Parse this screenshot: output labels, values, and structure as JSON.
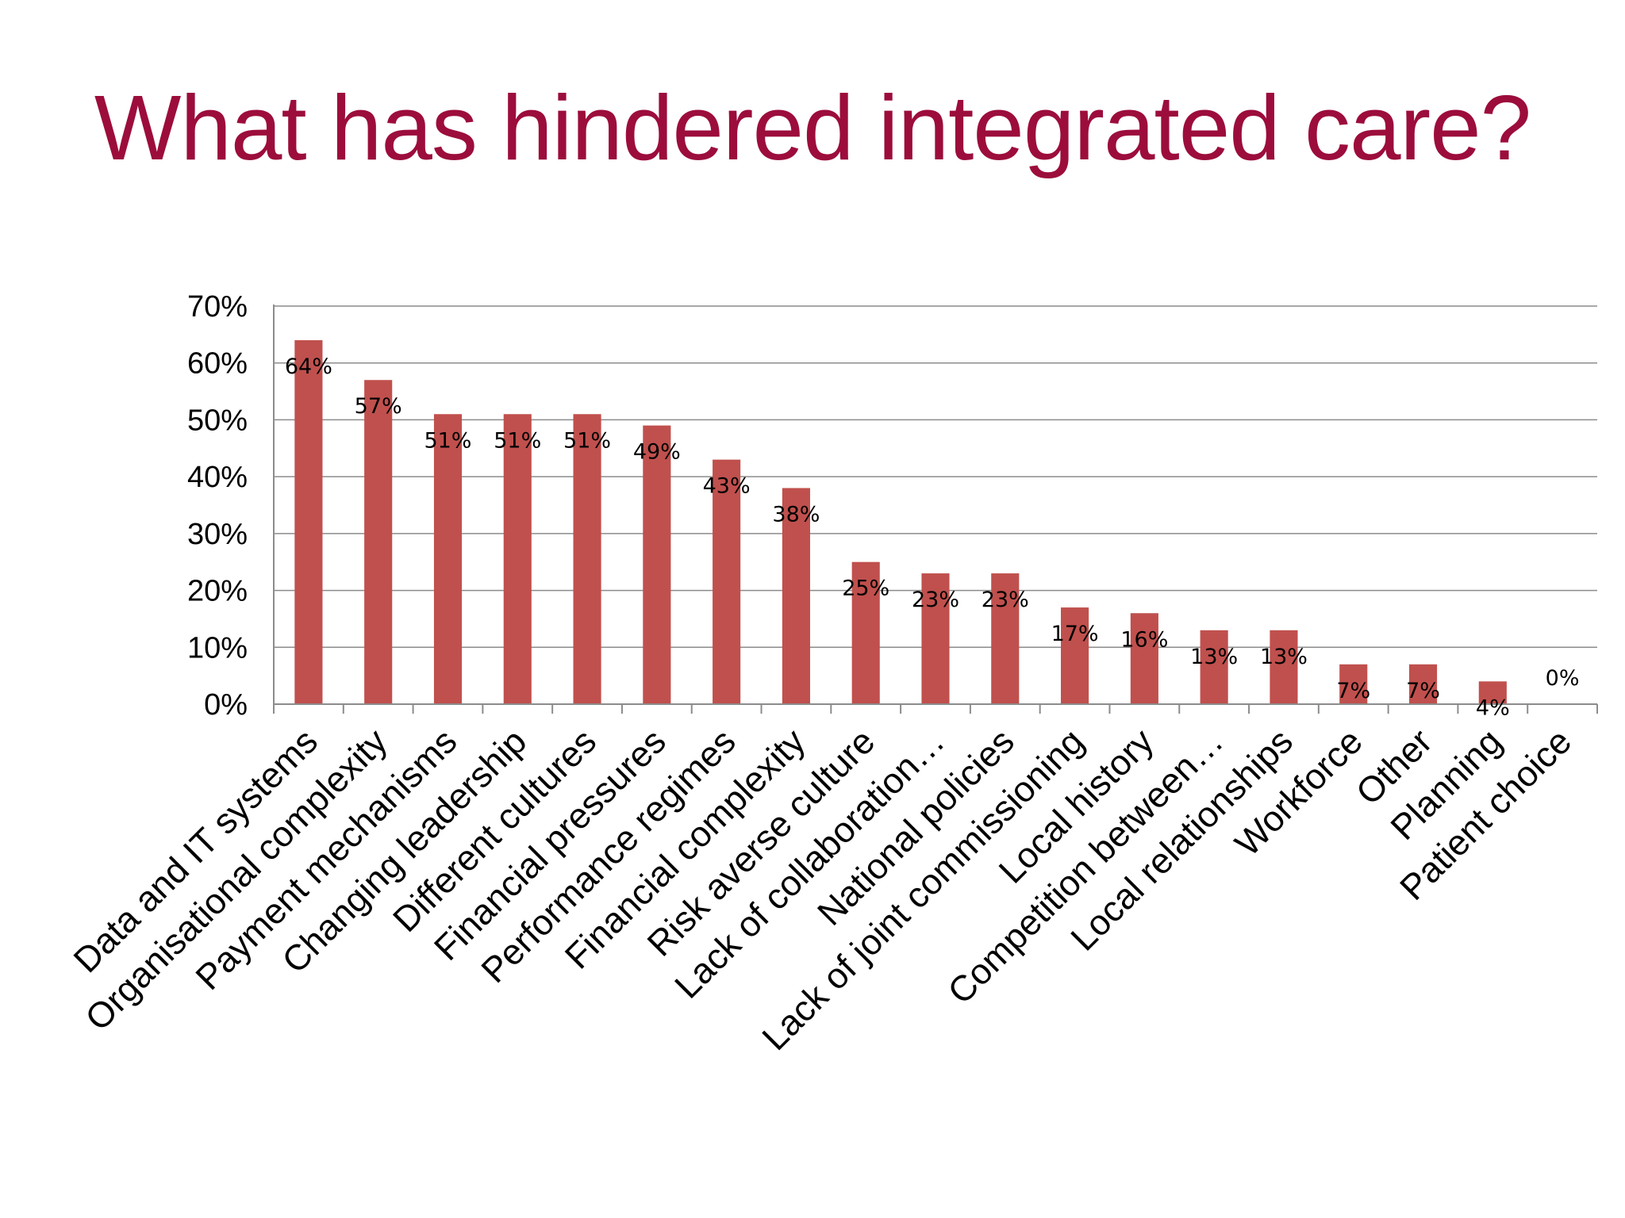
{
  "slide": {
    "title": "What has hindered integrated care?"
  },
  "chart_data": {
    "type": "bar",
    "title": "What has hindered integrated care?",
    "xlabel": "",
    "ylabel": "",
    "ylim": [
      0,
      70
    ],
    "yticks": [
      "0%",
      "10%",
      "20%",
      "30%",
      "40%",
      "50%",
      "60%",
      "70%"
    ],
    "grid": true,
    "legend": "none",
    "bar_color": "#c0504d",
    "categories": [
      "Data and IT systems",
      "Organisational complexity",
      "Payment mechanisms",
      "Changing leadership",
      "Different cultures",
      "Financial pressures",
      "Performance regimes",
      "Financial complexity",
      "Risk averse culture",
      "Lack of collaboration…",
      "National policies",
      "Lack of joint commissioning",
      "Local history",
      "Competition between…",
      "Local relationships",
      "Workforce",
      "Other",
      "Planning",
      "Patient choice"
    ],
    "values": [
      64,
      57,
      51,
      51,
      51,
      49,
      43,
      38,
      25,
      23,
      23,
      17,
      16,
      13,
      13,
      7,
      7,
      4,
      0
    ],
    "data_labels": [
      "64%",
      "57%",
      "51%",
      "51%",
      "51%",
      "49%",
      "43%",
      "38%",
      "25%",
      "23%",
      "23%",
      "17%",
      "16%",
      "13%",
      "13%",
      "7%",
      "7%",
      "4%",
      "0%"
    ]
  }
}
